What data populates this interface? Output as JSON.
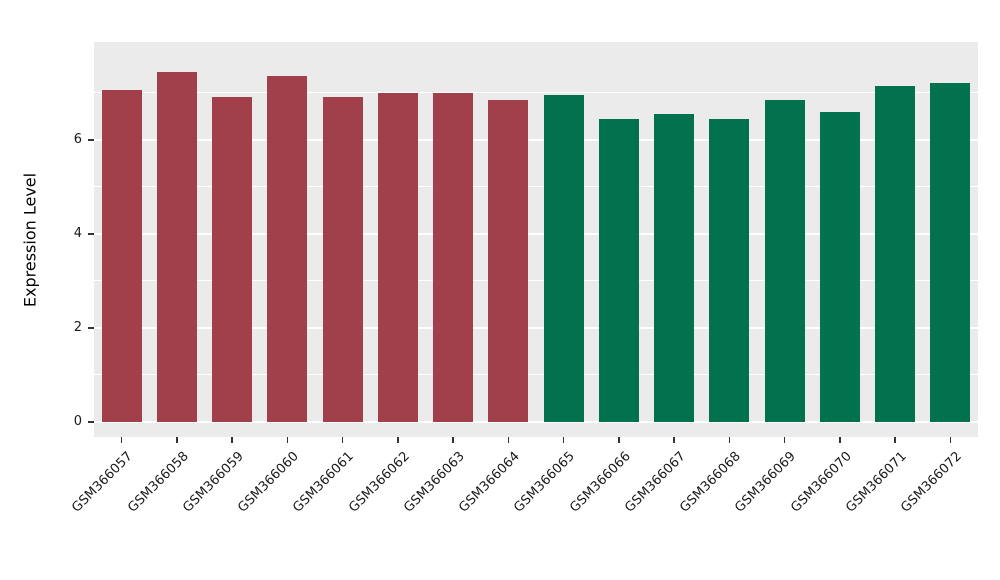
{
  "chart_data": {
    "type": "bar",
    "title": "",
    "xlabel": "",
    "ylabel": "Expression Level",
    "categories": [
      "GSM366057",
      "GSM366058",
      "GSM366059",
      "GSM366060",
      "GSM366061",
      "GSM366062",
      "GSM366063",
      "GSM366064",
      "GSM366065",
      "GSM366066",
      "GSM366067",
      "GSM366068",
      "GSM366069",
      "GSM366070",
      "GSM366071",
      "GSM366072"
    ],
    "values": [
      7.05,
      7.45,
      6.9,
      7.35,
      6.9,
      7.0,
      7.0,
      6.85,
      6.95,
      6.45,
      6.55,
      6.45,
      6.85,
      6.6,
      7.15,
      7.2
    ],
    "bar_groups": [
      0,
      0,
      0,
      0,
      0,
      0,
      0,
      0,
      1,
      1,
      1,
      1,
      1,
      1,
      1,
      1
    ],
    "group_colors": [
      "#A13F4B",
      "#02714D"
    ],
    "legend": "none",
    "grid": "on"
  },
  "axis": {
    "y_ticks": [
      0,
      2,
      4,
      6
    ],
    "y_minor_ticks": [
      1,
      3,
      5,
      7
    ],
    "ylim": [
      -0.32,
      8.08
    ]
  },
  "colors": {
    "panel_bg": "#EBEBEB",
    "grid": "#FFFFFF",
    "axis_text": "#1a1a1a",
    "figure_bg": "#FFFFFF"
  }
}
